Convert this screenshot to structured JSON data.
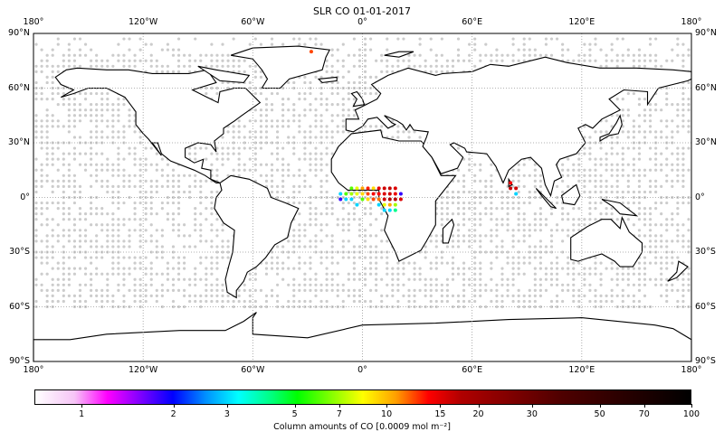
{
  "title": "SLR CO 01-01-2017",
  "chart_data": {
    "type": "map",
    "title": "SLR CO 01-01-2017",
    "projection": "equirectangular",
    "lon_range": [
      -180,
      180
    ],
    "lat_range": [
      -90,
      90
    ],
    "lon_ticks": [
      "180°",
      "120°W",
      "60°W",
      "0°",
      "60°E",
      "120°E",
      "180°"
    ],
    "lat_ticks": [
      "90°N",
      "60°N",
      "30°N",
      "0°",
      "30°S",
      "60°S",
      "90°S"
    ],
    "grid": true,
    "missing_color": "#cccccc",
    "colorbar": {
      "label": "Column amounts of CO [0.0009 mol m⁻²]",
      "scale": "log",
      "range": [
        0.7,
        100
      ],
      "ticks": [
        "1",
        "2",
        "3",
        "5",
        "7",
        "10",
        "15",
        "20",
        "30",
        "50",
        "70",
        "100"
      ],
      "colormap": [
        "#ffffff",
        "#ff00ff",
        "#0000ff",
        "#00ffff",
        "#00ff00",
        "#ffff00",
        "#ff0000",
        "#000000"
      ]
    },
    "points": [
      {
        "lon": -12,
        "lat": 2,
        "value": 3
      },
      {
        "lon": -9,
        "lat": 2,
        "value": 6
      },
      {
        "lon": -6,
        "lat": 2,
        "value": 7
      },
      {
        "lon": -3,
        "lat": 2,
        "value": 8
      },
      {
        "lon": 0,
        "lat": 2,
        "value": 9
      },
      {
        "lon": 3,
        "lat": 2,
        "value": 12
      },
      {
        "lon": 6,
        "lat": 2,
        "value": 15
      },
      {
        "lon": 9,
        "lat": 2,
        "value": 14
      },
      {
        "lon": 12,
        "lat": 2,
        "value": 18
      },
      {
        "lon": 15,
        "lat": 2,
        "value": 20
      },
      {
        "lon": 18,
        "lat": 2,
        "value": 16
      },
      {
        "lon": 21,
        "lat": 2,
        "value": 1.8
      },
      {
        "lon": -6,
        "lat": 5,
        "value": 6
      },
      {
        "lon": -3,
        "lat": 5,
        "value": 8
      },
      {
        "lon": 0,
        "lat": 5,
        "value": 10
      },
      {
        "lon": 3,
        "lat": 5,
        "value": 13
      },
      {
        "lon": 6,
        "lat": 5,
        "value": 9
      },
      {
        "lon": 9,
        "lat": 5,
        "value": 16
      },
      {
        "lon": 12,
        "lat": 5,
        "value": 20
      },
      {
        "lon": 15,
        "lat": 5,
        "value": 22
      },
      {
        "lon": 18,
        "lat": 5,
        "value": 18
      },
      {
        "lon": -12,
        "lat": -1,
        "value": 1.8
      },
      {
        "lon": -9,
        "lat": -1,
        "value": 3
      },
      {
        "lon": -6,
        "lat": -1,
        "value": 3
      },
      {
        "lon": 0,
        "lat": -1,
        "value": 6
      },
      {
        "lon": 3,
        "lat": -1,
        "value": 9
      },
      {
        "lon": 6,
        "lat": -1,
        "value": 12
      },
      {
        "lon": 9,
        "lat": -1,
        "value": 11
      },
      {
        "lon": 12,
        "lat": -1,
        "value": 20
      },
      {
        "lon": 15,
        "lat": -1,
        "value": 25
      },
      {
        "lon": 18,
        "lat": -1,
        "value": 24
      },
      {
        "lon": 21,
        "lat": -1,
        "value": 18
      },
      {
        "lon": -3,
        "lat": -4,
        "value": 3
      },
      {
        "lon": 9,
        "lat": -4,
        "value": 3
      },
      {
        "lon": 12,
        "lat": -4,
        "value": 8
      },
      {
        "lon": 15,
        "lat": -4,
        "value": 10
      },
      {
        "lon": 18,
        "lat": -4,
        "value": 7
      },
      {
        "lon": 12,
        "lat": -7,
        "value": 3
      },
      {
        "lon": 15,
        "lat": -7,
        "value": 3
      },
      {
        "lon": 18,
        "lat": -7,
        "value": 4
      },
      {
        "lon": 81,
        "lat": 8,
        "value": 14
      },
      {
        "lon": 84,
        "lat": 5,
        "value": 20
      },
      {
        "lon": 81,
        "lat": 5,
        "value": 22
      },
      {
        "lon": 84,
        "lat": 2,
        "value": 3
      },
      {
        "lon": -28,
        "lat": 80,
        "value": 12
      }
    ]
  }
}
